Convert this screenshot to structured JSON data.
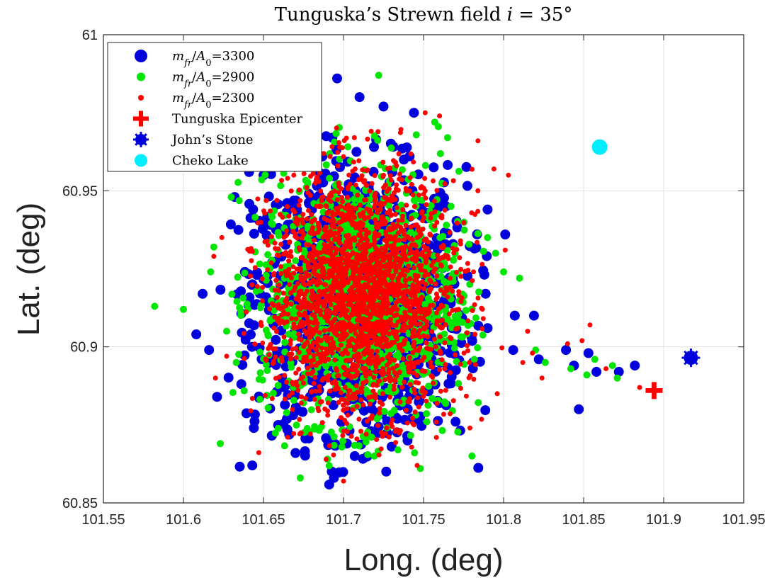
{
  "chart_data": {
    "type": "scatter",
    "title": "Tunguska’s Strewn field i = 35°",
    "title_parts": {
      "main": "Tunguska’s Strewn field ",
      "var": "i",
      "eq": " = 35°"
    },
    "xlabel": "Long. (deg)",
    "ylabel": "Lat. (deg)",
    "xlim": [
      101.55,
      101.95
    ],
    "ylim": [
      60.85,
      61.0
    ],
    "xticks": [
      101.55,
      101.6,
      101.65,
      101.7,
      101.75,
      101.8,
      101.85,
      101.9,
      101.95
    ],
    "xtick_labels": [
      "101.55",
      "101.6",
      "101.65",
      "101.7",
      "101.75",
      "101.8",
      "101.85",
      "101.9",
      "101.95"
    ],
    "yticks": [
      60.85,
      60.9,
      60.95,
      61.0
    ],
    "ytick_labels": [
      "60.85",
      "60.9",
      "60.95",
      "61"
    ],
    "grid": true,
    "legend_position": "top-left",
    "legend": [
      {
        "label_var": "m",
        "label_sub": "fr",
        "label_mid": "/",
        "label_var2": "A",
        "label_sub2": "0",
        "label_value": "=3300",
        "color": "#0000dd",
        "marker": "big-dot"
      },
      {
        "label_var": "m",
        "label_sub": "fr",
        "label_mid": "/",
        "label_var2": "A",
        "label_sub2": "0",
        "label_value": "=2900",
        "color": "#00e600",
        "marker": "mid-dot"
      },
      {
        "label_var": "m",
        "label_sub": "fr",
        "label_mid": "/",
        "label_var2": "A",
        "label_sub2": "0",
        "label_value": "=2300",
        "color": "#ff0000",
        "marker": "small-dot"
      },
      {
        "label": "Tunguska Epicenter",
        "color": "#ff0000",
        "marker": "plus"
      },
      {
        "label": "John’s Stone",
        "color": "#0000dd",
        "marker": "star-dot"
      },
      {
        "label": "Cheko Lake",
        "color": "#00eeff",
        "marker": "big-dot"
      }
    ],
    "series": [
      {
        "name": "m_fr/A_0=3300",
        "color": "#0000dd",
        "marker_radius": 7,
        "cloud": {
          "center": [
            101.71,
            60.915
          ],
          "spread": [
            0.033,
            0.021
          ],
          "count": 1100
        },
        "points": [
          [
            101.643,
            60.862
          ],
          [
            101.632,
            60.948
          ],
          [
            101.641,
            60.956
          ],
          [
            101.612,
            60.917
          ],
          [
            101.608,
            60.904
          ],
          [
            101.616,
            60.899
          ],
          [
            101.621,
            60.884
          ],
          [
            101.644,
            60.874
          ],
          [
            101.65,
            60.955
          ],
          [
            101.676,
            60.963
          ],
          [
            101.693,
            60.967
          ],
          [
            101.725,
            60.977
          ],
          [
            101.744,
            60.975
          ],
          [
            101.71,
            60.98
          ],
          [
            101.696,
            60.986
          ],
          [
            101.694,
            60.858
          ],
          [
            101.707,
            60.865
          ],
          [
            101.67,
            60.866
          ],
          [
            101.717,
            60.873
          ],
          [
            101.74,
            60.87
          ],
          [
            101.79,
            60.944
          ],
          [
            101.801,
            60.936
          ],
          [
            101.807,
            60.91
          ],
          [
            101.819,
            60.91
          ],
          [
            101.806,
            60.899
          ],
          [
            101.822,
            60.896
          ],
          [
            101.839,
            60.899
          ],
          [
            101.844,
            60.894
          ],
          [
            101.847,
            60.88
          ],
          [
            101.853,
            60.898
          ],
          [
            101.858,
            60.892
          ],
          [
            101.872,
            60.892
          ],
          [
            101.882,
            60.894
          ],
          [
            101.79,
            60.906
          ],
          [
            101.77,
            60.876
          ],
          [
            101.76,
            60.882
          ]
        ]
      },
      {
        "name": "m_fr/A_0=2900",
        "color": "#00e600",
        "marker_radius": 5,
        "cloud": {
          "center": [
            101.71,
            60.916
          ],
          "spread": [
            0.031,
            0.02
          ],
          "count": 1300
        },
        "points": [
          [
            101.582,
            60.913
          ],
          [
            101.6,
            60.912
          ],
          [
            101.619,
            60.932
          ],
          [
            101.617,
            60.924
          ],
          [
            101.623,
            60.869
          ],
          [
            101.722,
            60.987
          ],
          [
            101.673,
            60.858
          ],
          [
            101.748,
            60.861
          ],
          [
            101.734,
            60.867
          ],
          [
            101.8,
            60.924
          ],
          [
            101.81,
            60.922
          ],
          [
            101.826,
            60.895
          ],
          [
            101.842,
            60.893
          ],
          [
            101.852,
            60.891
          ],
          [
            101.857,
            60.896
          ],
          [
            101.868,
            60.894
          ],
          [
            101.871,
            60.89
          ],
          [
            101.82,
            60.899
          ],
          [
            101.757,
            60.972
          ],
          [
            101.765,
            60.967
          ],
          [
            101.79,
            60.935
          ],
          [
            101.795,
            60.93
          ],
          [
            101.627,
            60.905
          ],
          [
            101.633,
            60.895
          ],
          [
            101.69,
            60.864
          ],
          [
            101.752,
            60.876
          ]
        ]
      },
      {
        "name": "m_fr/A_0=2300",
        "color": "#ff0000",
        "marker_radius": 3.5,
        "cloud": {
          "center": [
            101.712,
            60.917
          ],
          "spread": [
            0.029,
            0.019
          ],
          "count": 2200
        },
        "points": [
          [
            101.619,
            60.929
          ],
          [
            101.624,
            60.935
          ],
          [
            101.627,
            60.897
          ],
          [
            101.62,
            60.89
          ],
          [
            101.751,
            60.975
          ],
          [
            101.76,
            60.974
          ],
          [
            101.784,
            60.966
          ],
          [
            101.794,
            60.957
          ],
          [
            101.803,
            60.955
          ],
          [
            101.801,
            60.931
          ],
          [
            101.815,
            60.905
          ],
          [
            101.818,
            60.898
          ],
          [
            101.812,
            60.895
          ],
          [
            101.84,
            60.901
          ],
          [
            101.849,
            60.902
          ],
          [
            101.854,
            60.907
          ],
          [
            101.824,
            60.89
          ],
          [
            101.864,
            60.893
          ],
          [
            101.885,
            60.887
          ],
          [
            101.7,
            60.857
          ],
          [
            101.746,
            60.862
          ],
          [
            101.744,
            60.875
          ],
          [
            101.758,
            60.871
          ],
          [
            101.779,
            60.874
          ],
          [
            101.796,
            60.885
          ]
        ]
      }
    ],
    "markers": [
      {
        "name": "Tunguska Epicenter",
        "x": 101.894,
        "y": 60.886,
        "color": "#ff0000",
        "marker": "plus"
      },
      {
        "name": "John’s Stone",
        "x": 101.917,
        "y": 60.8965,
        "color": "#0000dd",
        "marker": "star-dot"
      },
      {
        "name": "Cheko Lake",
        "x": 101.86,
        "y": 60.964,
        "color": "#00eeff",
        "marker": "big-dot"
      }
    ]
  }
}
